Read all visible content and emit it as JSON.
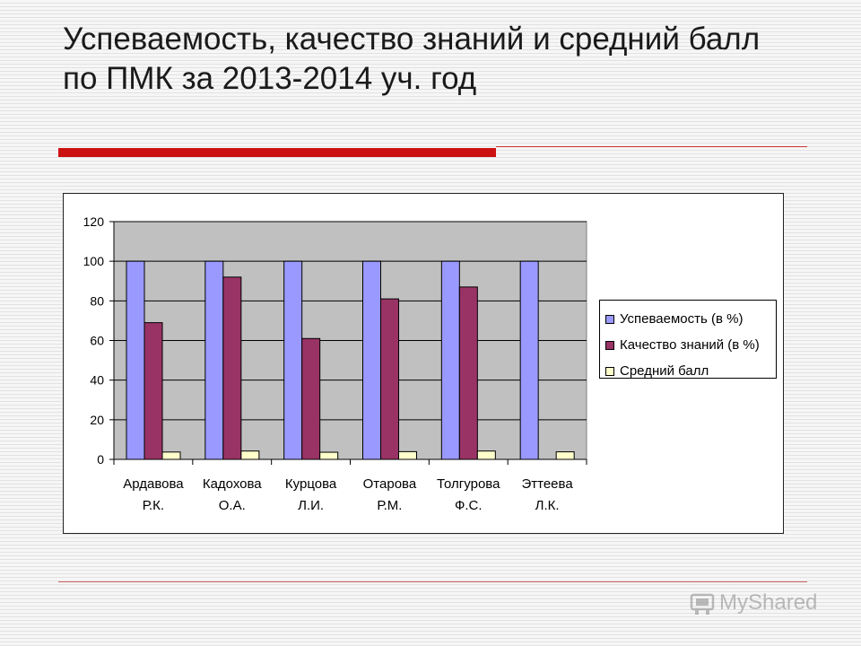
{
  "slide": {
    "title": "Успеваемость, качество знаний и средний балл по ПМК за 2013-2014 уч. год",
    "watermark": "MyShared"
  },
  "chart_data": {
    "type": "bar",
    "categories": [
      [
        "Ардавова",
        "Р.К."
      ],
      [
        "Кадохова",
        "О.А."
      ],
      [
        "Курцова",
        "Л.И."
      ],
      [
        "Отарова",
        "Р.М."
      ],
      [
        "Толгурова",
        "Ф.С."
      ],
      [
        "Эттеева",
        "Л.К."
      ]
    ],
    "series": [
      {
        "name": "Успеваемость (в %)",
        "color": "#9999ff",
        "values": [
          100,
          100,
          100,
          100,
          100,
          100
        ]
      },
      {
        "name": "Качество знаний (в %)",
        "color": "#993366",
        "values": [
          69,
          92,
          61,
          81,
          87,
          0
        ]
      },
      {
        "name": "Средний балл",
        "color": "#ffffcc",
        "values": [
          3.7,
          4.2,
          3.6,
          3.9,
          4.2,
          3.8
        ]
      }
    ],
    "ylim": [
      0,
      120
    ],
    "yticks": [
      0,
      20,
      40,
      60,
      80,
      100,
      120
    ],
    "grid": true,
    "plot_background": "#c0c0c0",
    "legend": "right"
  }
}
